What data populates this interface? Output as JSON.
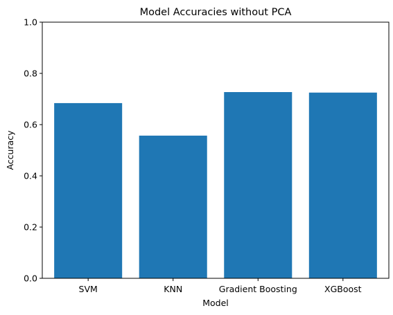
{
  "chart_data": {
    "type": "bar",
    "title": "Model Accuracies without PCA",
    "xlabel": "Model",
    "ylabel": "Accuracy",
    "categories": [
      "SVM",
      "KNN",
      "Gradient Boosting",
      "XGBoost"
    ],
    "values": [
      0.684,
      0.557,
      0.727,
      0.725
    ],
    "ylim": [
      0,
      1
    ],
    "yticks": [
      "0.0",
      "0.2",
      "0.4",
      "0.6",
      "0.8",
      "1.0"
    ],
    "bar_color": "#1f77b4",
    "grid": false,
    "legend": "none"
  }
}
